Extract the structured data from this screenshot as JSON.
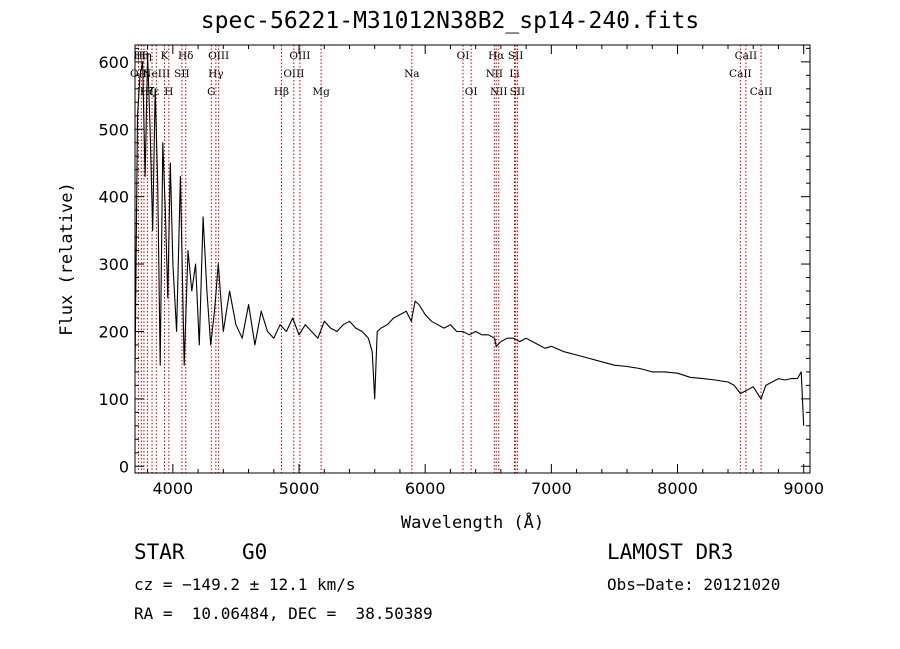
{
  "title": "spec-56221-M31012N38B2_sp14-240.fits",
  "chart_data": {
    "type": "line",
    "title": "spec-56221-M31012N38B2_sp14-240.fits",
    "xlabel": "Wavelength (Å)",
    "ylabel": "Flux (relative)",
    "xlim": [
      3700,
      9050
    ],
    "ylim": [
      -10,
      625
    ],
    "xticks": [
      4000,
      5000,
      6000,
      7000,
      8000,
      9000
    ],
    "xtick_labels": [
      "4000",
      "5000",
      "6000",
      "7000",
      "8000",
      "9000"
    ],
    "yticks": [
      0,
      100,
      200,
      300,
      400,
      500,
      600
    ],
    "ytick_labels": [
      "0",
      "100",
      "200",
      "300",
      "400",
      "500",
      "600"
    ],
    "grid": false,
    "series": [
      {
        "name": "spectrum",
        "x": [
          3700,
          3720,
          3740,
          3760,
          3780,
          3800,
          3820,
          3840,
          3860,
          3880,
          3900,
          3920,
          3940,
          3960,
          3980,
          4000,
          4030,
          4060,
          4090,
          4120,
          4150,
          4180,
          4210,
          4240,
          4270,
          4300,
          4330,
          4360,
          4400,
          4450,
          4500,
          4550,
          4600,
          4650,
          4700,
          4750,
          4800,
          4850,
          4900,
          4950,
          5000,
          5050,
          5100,
          5150,
          5200,
          5250,
          5300,
          5350,
          5400,
          5450,
          5500,
          5550,
          5580,
          5600,
          5620,
          5650,
          5700,
          5750,
          5800,
          5850,
          5890,
          5920,
          5950,
          6000,
          6050,
          6100,
          6150,
          6200,
          6250,
          6300,
          6350,
          6400,
          6450,
          6500,
          6550,
          6563,
          6600,
          6650,
          6700,
          6750,
          6800,
          6850,
          6900,
          6950,
          7000,
          7100,
          7200,
          7300,
          7400,
          7500,
          7600,
          7700,
          7800,
          7900,
          8000,
          8100,
          8200,
          8300,
          8400,
          8450,
          8498,
          8542,
          8600,
          8662,
          8700,
          8750,
          8800,
          8850,
          8900,
          8950,
          8980,
          9000
        ],
        "values": [
          140,
          520,
          580,
          600,
          430,
          610,
          500,
          350,
          560,
          420,
          150,
          480,
          380,
          250,
          450,
          300,
          200,
          430,
          150,
          320,
          260,
          300,
          180,
          370,
          260,
          180,
          230,
          300,
          200,
          260,
          210,
          190,
          240,
          180,
          230,
          200,
          190,
          210,
          200,
          220,
          195,
          210,
          200,
          190,
          215,
          205,
          200,
          210,
          215,
          205,
          200,
          190,
          170,
          100,
          200,
          205,
          210,
          220,
          225,
          230,
          215,
          245,
          240,
          225,
          215,
          210,
          205,
          210,
          200,
          200,
          195,
          200,
          195,
          195,
          190,
          178,
          185,
          190,
          190,
          185,
          190,
          185,
          180,
          175,
          178,
          170,
          165,
          160,
          155,
          150,
          148,
          145,
          140,
          140,
          138,
          132,
          130,
          128,
          125,
          120,
          108,
          112,
          118,
          100,
          120,
          125,
          130,
          128,
          130,
          130,
          140,
          60
        ]
      }
    ],
    "lines": [
      {
        "label": "OII",
        "x": 3727,
        "row": 1
      },
      {
        "label": "Hθ",
        "x": 3750,
        "row": 0
      },
      {
        "label": "Hη",
        "x": 3771,
        "row": 0
      },
      {
        "label": "Hζ",
        "x": 3798,
        "row": 2
      },
      {
        "label": "Hε",
        "x": 3835,
        "row": 2
      },
      {
        "label": "NeIII",
        "x": 3869,
        "row": 1
      },
      {
        "label": "K",
        "x": 3934,
        "row": 0
      },
      {
        "label": "H",
        "x": 3968,
        "row": 2
      },
      {
        "label": "SII",
        "x": 4072,
        "row": 1
      },
      {
        "label": "Hδ",
        "x": 4102,
        "row": 0
      },
      {
        "label": "G",
        "x": 4305,
        "row": 2
      },
      {
        "label": "Hγ",
        "x": 4341,
        "row": 1
      },
      {
        "label": "OIII",
        "x": 4363,
        "row": 0
      },
      {
        "label": "Hβ",
        "x": 4861,
        "row": 2
      },
      {
        "label": "OIII",
        "x": 4959,
        "row": 1
      },
      {
        "label": "OIII",
        "x": 5007,
        "row": 0
      },
      {
        "label": "Mg",
        "x": 5175,
        "row": 2
      },
      {
        "label": "Na",
        "x": 5894,
        "row": 1
      },
      {
        "label": "OI",
        "x": 6300,
        "row": 0
      },
      {
        "label": "OI",
        "x": 6364,
        "row": 2
      },
      {
        "label": "NII",
        "x": 6548,
        "row": 1
      },
      {
        "label": "Hα",
        "x": 6563,
        "row": 0
      },
      {
        "label": "NII",
        "x": 6583,
        "row": 2
      },
      {
        "label": "Li",
        "x": 6708,
        "row": 1
      },
      {
        "label": "SII",
        "x": 6717,
        "row": 0
      },
      {
        "label": "SII",
        "x": 6731,
        "row": 2
      },
      {
        "label": "CaII",
        "x": 8498,
        "row": 1
      },
      {
        "label": "CaII",
        "x": 8542,
        "row": 0
      },
      {
        "label": "CaII",
        "x": 8662,
        "row": 2
      }
    ]
  },
  "info": {
    "class": "STAR",
    "subclass": "G0",
    "survey": "LAMOST DR3",
    "cz": "cz = −149.2 ± 12.1 km/s",
    "obs_date": "Obs−Date: 20121020",
    "radec": "RA =  10.06484, DEC =  38.50389"
  }
}
